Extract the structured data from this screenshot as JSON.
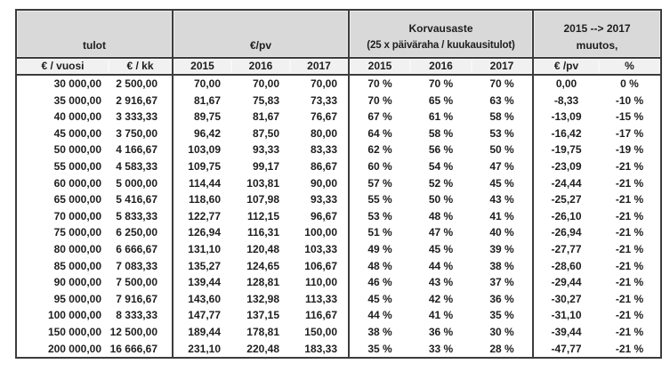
{
  "colors": {
    "page_bg": "#ffffff",
    "band_bg": "#d9d9d9",
    "subheader_bg": "#f1f1f1",
    "data_bg": "#ffffff",
    "border": "#3c3c3c",
    "text": "#1e1e1e"
  },
  "chart_data": {
    "type": "table",
    "column_groups": [
      {
        "line1": "",
        "line2": "tulot",
        "span": 2
      },
      {
        "line1": "",
        "line2": "€/pv",
        "span": 3
      },
      {
        "line1": "Korvausaste",
        "line2": "(25 x päiväraha / kuukausitulot)",
        "span": 3
      },
      {
        "line1": "2015 --> 2017",
        "line2": "muutos,",
        "span": 2
      }
    ],
    "columns": [
      "€ / vuosi",
      "€ / kk",
      "2015",
      "2016",
      "2017",
      "2015",
      "2016",
      "2017",
      "€ /pv",
      "%"
    ],
    "rows": [
      [
        "30 000,00",
        "2 500,00",
        "70,00",
        "70,00",
        "70,00",
        "70 %",
        "70 %",
        "70 %",
        "0,00",
        "0 %"
      ],
      [
        "35 000,00",
        "2 916,67",
        "81,67",
        "75,83",
        "73,33",
        "70 %",
        "65 %",
        "63 %",
        "-8,33",
        "-10 %"
      ],
      [
        "40 000,00",
        "3 333,33",
        "89,75",
        "81,67",
        "76,67",
        "67 %",
        "61 %",
        "58 %",
        "-13,09",
        "-15 %"
      ],
      [
        "45 000,00",
        "3 750,00",
        "96,42",
        "87,50",
        "80,00",
        "64 %",
        "58 %",
        "53 %",
        "-16,42",
        "-17 %"
      ],
      [
        "50 000,00",
        "4 166,67",
        "103,09",
        "93,33",
        "83,33",
        "62 %",
        "56 %",
        "50 %",
        "-19,75",
        "-19 %"
      ],
      [
        "55 000,00",
        "4 583,33",
        "109,75",
        "99,17",
        "86,67",
        "60 %",
        "54 %",
        "47 %",
        "-23,09",
        "-21 %"
      ],
      [
        "60 000,00",
        "5 000,00",
        "114,44",
        "103,81",
        "90,00",
        "57 %",
        "52 %",
        "45 %",
        "-24,44",
        "-21 %"
      ],
      [
        "65 000,00",
        "5 416,67",
        "118,60",
        "107,98",
        "93,33",
        "55 %",
        "50 %",
        "43 %",
        "-25,27",
        "-21 %"
      ],
      [
        "70 000,00",
        "5 833,33",
        "122,77",
        "112,15",
        "96,67",
        "53 %",
        "48 %",
        "41 %",
        "-26,10",
        "-21 %"
      ],
      [
        "75 000,00",
        "6 250,00",
        "126,94",
        "116,31",
        "100,00",
        "51 %",
        "47 %",
        "40 %",
        "-26,94",
        "-21 %"
      ],
      [
        "80 000,00",
        "6 666,67",
        "131,10",
        "120,48",
        "103,33",
        "49 %",
        "45 %",
        "39 %",
        "-27,77",
        "-21 %"
      ],
      [
        "85 000,00",
        "7 083,33",
        "135,27",
        "124,65",
        "106,67",
        "48 %",
        "44 %",
        "38 %",
        "-28,60",
        "-21 %"
      ],
      [
        "90 000,00",
        "7 500,00",
        "139,44",
        "128,81",
        "110,00",
        "46 %",
        "43 %",
        "37 %",
        "-29,44",
        "-21 %"
      ],
      [
        "95 000,00",
        "7 916,67",
        "143,60",
        "132,98",
        "113,33",
        "45 %",
        "42 %",
        "36 %",
        "-30,27",
        "-21 %"
      ],
      [
        "100 000,00",
        "8 333,33",
        "147,77",
        "137,15",
        "116,67",
        "44 %",
        "41 %",
        "35 %",
        "-31,10",
        "-21 %"
      ],
      [
        "150 000,00",
        "12 500,00",
        "189,44",
        "178,81",
        "150,00",
        "38 %",
        "36 %",
        "30 %",
        "-39,44",
        "-21 %"
      ],
      [
        "200 000,00",
        "16 666,67",
        "231,10",
        "220,48",
        "183,33",
        "35 %",
        "33 %",
        "28 %",
        "-47,77",
        "-21 %"
      ]
    ]
  }
}
